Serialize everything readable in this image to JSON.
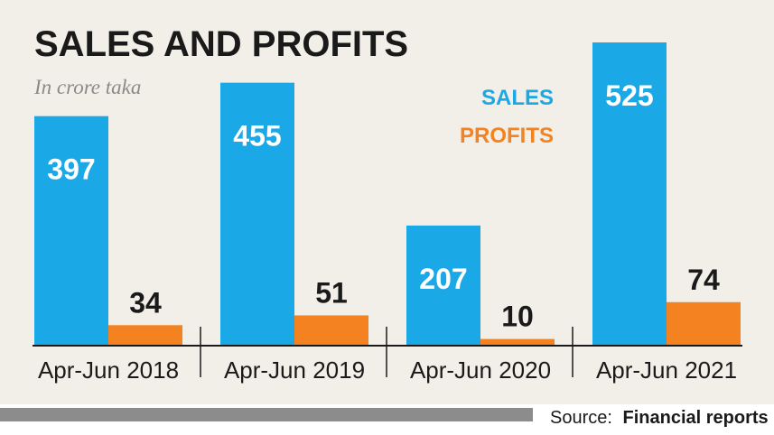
{
  "chart_data": {
    "type": "bar",
    "title": "SALES AND PROFITS",
    "subtitle": "In crore taka",
    "categories": [
      "Apr-Jun 2018",
      "Apr-Jun 2019",
      "Apr-Jun 2020",
      "Apr-Jun 2021"
    ],
    "series": [
      {
        "name": "SALES",
        "color": "#1aa8e6",
        "values": [
          397,
          455,
          207,
          525
        ]
      },
      {
        "name": "PROFITS",
        "color": "#f58220",
        "values": [
          34,
          51,
          10,
          74
        ]
      }
    ],
    "ylim": [
      0,
      525
    ],
    "legend_position": "top-right",
    "source_label": "Source:",
    "source_value": "Financial reports"
  },
  "colors": {
    "background": "#f2efe8",
    "text": "#1a1a1a",
    "subtitle": "#8a8a8a",
    "footer_bar": "#8c8c8c"
  }
}
